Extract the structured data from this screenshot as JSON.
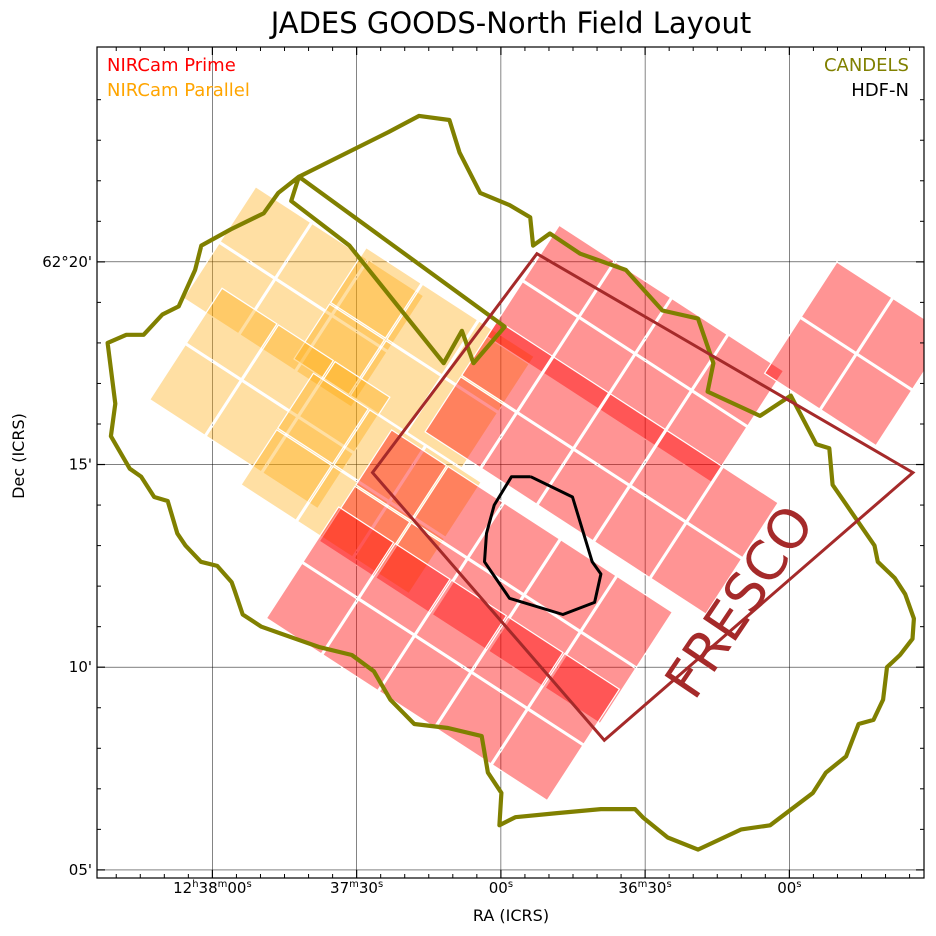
{
  "chart_data": {
    "type": "sky_footprint",
    "title": "JADES GOODS-North Field Layout",
    "xlabel": "RA (ICRS)",
    "ylabel": "Dec (ICRS)",
    "x_ticks": [
      {
        "ra_s": 0,
        "h": "12",
        "hs": "h",
        "m": "38",
        "ms": "m",
        "s": "00",
        "ss": "s"
      },
      {
        "ra_s": -30,
        "h": "",
        "hs": "",
        "m": "37",
        "ms": "m",
        "s": "30",
        "ss": "s"
      },
      {
        "ra_s": -60,
        "h": "",
        "hs": "",
        "m": "",
        "ms": "",
        "s": "00",
        "ss": "s"
      },
      {
        "ra_s": -90,
        "h": "",
        "hs": "",
        "m": "36",
        "ms": "m",
        "s": "30",
        "ss": "s"
      },
      {
        "ra_s": -120,
        "h": "",
        "hs": "",
        "m": "",
        "ms": "",
        "s": "00",
        "ss": "s"
      }
    ],
    "y_ticks": [
      {
        "dec_min": 20,
        "label": "62°20'"
      },
      {
        "dec_min": 15,
        "label": "15'"
      },
      {
        "dec_min": 10,
        "label": "10'"
      },
      {
        "dec_min": 5,
        "label": "05'"
      }
    ],
    "axis_ranges": {
      "ra_s_left": 24,
      "ra_s_right": -148,
      "dec_min_bottom": 4.8,
      "dec_min_top": 25.3
    },
    "grid": true,
    "legend": [
      {
        "label": "NIRCam Prime",
        "color": "#ff0000",
        "position": "top-left"
      },
      {
        "label": "NIRCam Parallel",
        "color": "#ffa500",
        "position": "top-left"
      },
      {
        "label": "CANDELS",
        "color": "#808000",
        "position": "top-right"
      },
      {
        "label": "HDF-N",
        "color": "#000000",
        "position": "top-right"
      }
    ],
    "fresco": {
      "label": "FRESCO",
      "color": "#a52a2a",
      "corners": [
        [
          -67.5,
          20.2
        ],
        [
          -145.7,
          14.8
        ],
        [
          -81.5,
          8.2
        ],
        [
          -33.3,
          14.8
        ]
      ]
    },
    "pointing_angle_deg": 33,
    "prime_pointings": [
      {
        "ra_s": -88,
        "dec_min": 17.7,
        "grid": [
          4,
          2
        ]
      },
      {
        "ra_s": -134,
        "dec_min": 17.7,
        "grid": [
          2,
          2
        ]
      },
      {
        "ra_s": -81,
        "dec_min": 14.9,
        "grid": [
          5,
          2
        ]
      },
      {
        "ra_s": -59,
        "dec_min": 12.2,
        "grid": [
          5,
          2
        ]
      },
      {
        "ra_s": -48,
        "dec_min": 10.3,
        "grid": [
          5,
          2
        ]
      }
    ],
    "parallel_pointings": [
      {
        "ra_s": -19,
        "dec_min": 19.1,
        "grid": [
          3,
          2
        ]
      },
      {
        "ra_s": -42,
        "dec_min": 17.6,
        "grid": [
          3,
          2
        ]
      },
      {
        "ra_s": -12,
        "dec_min": 16.6,
        "grid": [
          3,
          2
        ]
      },
      {
        "ra_s": -31,
        "dec_min": 14.5,
        "grid": [
          3,
          2
        ]
      }
    ],
    "candels_outline": [
      [
        -60.8,
        18.4
      ],
      [
        -54.3,
        17.5
      ],
      [
        -51.9,
        18.3
      ],
      [
        -48.1,
        17.5
      ],
      [
        -28.5,
        20.4
      ],
      [
        -16.4,
        21.5
      ],
      [
        -18.0,
        22.1
      ],
      [
        -36.6,
        23.2
      ],
      [
        -43.0,
        23.6
      ],
      [
        -49.3,
        23.5
      ],
      [
        -51.4,
        22.7
      ],
      [
        -55.7,
        21.7
      ],
      [
        -61.8,
        21.4
      ],
      [
        -66.1,
        21.1
      ],
      [
        -66.7,
        20.4
      ],
      [
        -70.2,
        20.7
      ],
      [
        -76.5,
        20.2
      ],
      [
        -86.0,
        19.8
      ],
      [
        -93.6,
        18.8
      ],
      [
        -101.0,
        18.6
      ],
      [
        -104.2,
        17.5
      ],
      [
        -103.0,
        16.8
      ],
      [
        -113.9,
        16.2
      ],
      [
        -120.3,
        16.7
      ],
      [
        -125.6,
        15.5
      ],
      [
        -128.3,
        15.4
      ],
      [
        -129.0,
        14.5
      ],
      [
        -131.9,
        14.0
      ],
      [
        -137.7,
        13.0
      ],
      [
        -138.4,
        12.6
      ],
      [
        -141.9,
        12.2
      ],
      [
        -144.1,
        11.8
      ],
      [
        -145.9,
        11.2
      ],
      [
        -145.6,
        10.7
      ],
      [
        -143.0,
        10.3
      ],
      [
        -140.3,
        10.0
      ],
      [
        -139.5,
        9.2
      ],
      [
        -137.5,
        8.7
      ],
      [
        -134.4,
        8.6
      ],
      [
        -131.8,
        7.8
      ],
      [
        -129.7,
        7.6
      ],
      [
        -127.6,
        7.4
      ],
      [
        -124.9,
        6.9
      ],
      [
        -116.0,
        6.1
      ],
      [
        -110.0,
        6.0
      ],
      [
        -101.0,
        5.5
      ],
      [
        -94.7,
        5.8
      ],
      [
        -89.5,
        6.3
      ],
      [
        -87.9,
        6.5
      ],
      [
        -80.8,
        6.5
      ],
      [
        -71.7,
        6.4
      ],
      [
        -63.0,
        6.3
      ],
      [
        -59.7,
        6.1
      ],
      [
        -60.1,
        6.9
      ],
      [
        -57.3,
        7.4
      ],
      [
        -56.0,
        8.3
      ],
      [
        -49.0,
        8.5
      ],
      [
        -42.0,
        8.6
      ],
      [
        -39.5,
        8.9
      ],
      [
        -37.0,
        9.2
      ],
      [
        -33.6,
        9.9
      ],
      [
        -29.0,
        10.3
      ],
      [
        -22.1,
        10.5
      ],
      [
        -17.3,
        10.7
      ],
      [
        -10.2,
        11.0
      ],
      [
        -6.3,
        11.3
      ],
      [
        -4.6,
        11.9
      ],
      [
        -4.0,
        12.1
      ],
      [
        -1.0,
        12.5
      ],
      [
        2.4,
        12.6
      ],
      [
        5.6,
        13.0
      ],
      [
        7.3,
        13.3
      ],
      [
        9.3,
        14.1
      ],
      [
        12.1,
        14.2
      ],
      [
        14.8,
        14.7
      ],
      [
        17.2,
        14.9
      ],
      [
        21.1,
        15.7
      ],
      [
        20.2,
        16.5
      ],
      [
        21.8,
        18.0
      ],
      [
        17.9,
        18.2
      ],
      [
        14.3,
        18.2
      ],
      [
        10.4,
        18.7
      ],
      [
        7.0,
        18.9
      ],
      [
        3.6,
        19.8
      ],
      [
        2.3,
        20.4
      ],
      [
        -3.8,
        20.8
      ],
      [
        -10.7,
        21.2
      ],
      [
        -13.7,
        21.7
      ],
      [
        -18.0,
        22.1
      ]
    ],
    "hdfn_outline": [
      [
        -66.2,
        14.7
      ],
      [
        -74.9,
        14.2
      ],
      [
        -79.0,
        12.6
      ],
      [
        -80.8,
        12.3
      ],
      [
        -79.5,
        11.6
      ],
      [
        -72.9,
        11.3
      ],
      [
        -61.8,
        11.7
      ],
      [
        -56.6,
        12.6
      ],
      [
        -57.0,
        13.3
      ],
      [
        -58.6,
        14.0
      ],
      [
        -62.2,
        14.7
      ],
      [
        -66.2,
        14.7
      ]
    ]
  }
}
